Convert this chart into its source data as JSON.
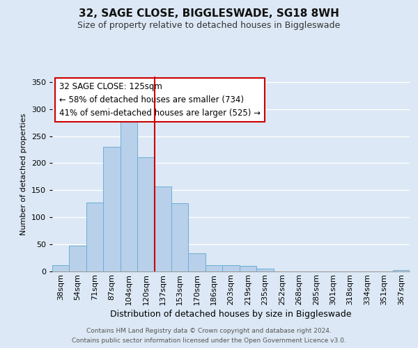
{
  "title1": "32, SAGE CLOSE, BIGGLESWADE, SG18 8WH",
  "title2": "Size of property relative to detached houses in Biggleswade",
  "xlabel": "Distribution of detached houses by size in Biggleswade",
  "ylabel": "Number of detached properties",
  "bar_labels": [
    "38sqm",
    "54sqm",
    "71sqm",
    "87sqm",
    "104sqm",
    "120sqm",
    "137sqm",
    "153sqm",
    "170sqm",
    "186sqm",
    "203sqm",
    "219sqm",
    "235sqm",
    "252sqm",
    "268sqm",
    "285sqm",
    "301sqm",
    "318sqm",
    "334sqm",
    "351sqm",
    "367sqm"
  ],
  "bar_heights": [
    11,
    47,
    127,
    230,
    283,
    211,
    157,
    126,
    34,
    12,
    12,
    10,
    5,
    0,
    0,
    0,
    0,
    0,
    0,
    0,
    2
  ],
  "bar_color": "#b8d0ea",
  "bar_edge_color": "#6aaed6",
  "vline_color": "#cc0000",
  "vline_bin_index": 5,
  "annotation_title": "32 SAGE CLOSE: 125sqm",
  "annotation_line1": "← 58% of detached houses are smaller (734)",
  "annotation_line2": "41% of semi-detached houses are larger (525) →",
  "annotation_box_facecolor": "white",
  "annotation_box_edgecolor": "#cc0000",
  "ylim": [
    0,
    360
  ],
  "yticks": [
    0,
    50,
    100,
    150,
    200,
    250,
    300,
    350
  ],
  "footer1": "Contains HM Land Registry data © Crown copyright and database right 2024.",
  "footer2": "Contains public sector information licensed under the Open Government Licence v3.0.",
  "bg_color": "#dce8f5",
  "title_fontsize": 11,
  "subtitle_fontsize": 9,
  "xlabel_fontsize": 9,
  "ylabel_fontsize": 8,
  "tick_fontsize": 8,
  "annotation_fontsize": 8.5,
  "footer_fontsize": 6.5
}
